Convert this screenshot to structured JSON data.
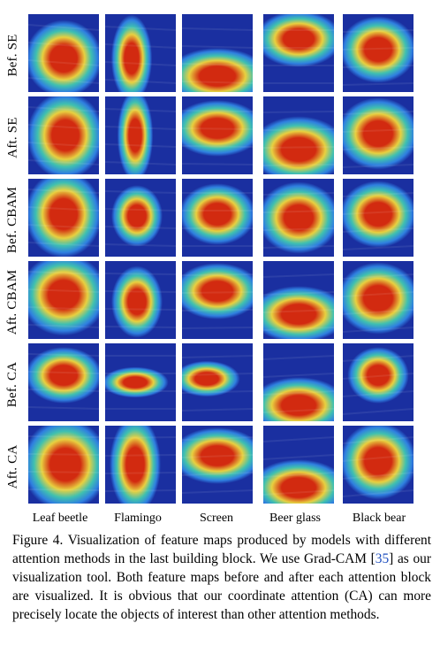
{
  "rows": [
    {
      "label": "Bef. SE"
    },
    {
      "label": "Aft. SE"
    },
    {
      "label": "Bef. CBAM"
    },
    {
      "label": "Aft. CBAM"
    },
    {
      "label": "Bef. CA"
    },
    {
      "label": "Aft. CA"
    }
  ],
  "columns": [
    {
      "label": "Leaf beetle"
    },
    {
      "label": "Flamingo"
    },
    {
      "label": "Screen"
    },
    {
      "label": "Beer glass"
    },
    {
      "label": "Black bear"
    }
  ],
  "caption": {
    "part1": "Figure 4. Visualization of feature maps produced by models with different attention methods in the last building block.  We use Grad-CAM [",
    "ref": "35",
    "part2": "] as our visualization tool.  Both feature maps before and after each attention block are visualized.  It is obvious that our coordinate attention (CA) can more precisely locate the objects of interest than other attention methods."
  },
  "colors": {
    "cold": "#1a2fa0",
    "cool": "#2f7fe0",
    "mid": "#3fc0b0",
    "warm": "#e8d040",
    "hot": "#d22a10"
  }
}
